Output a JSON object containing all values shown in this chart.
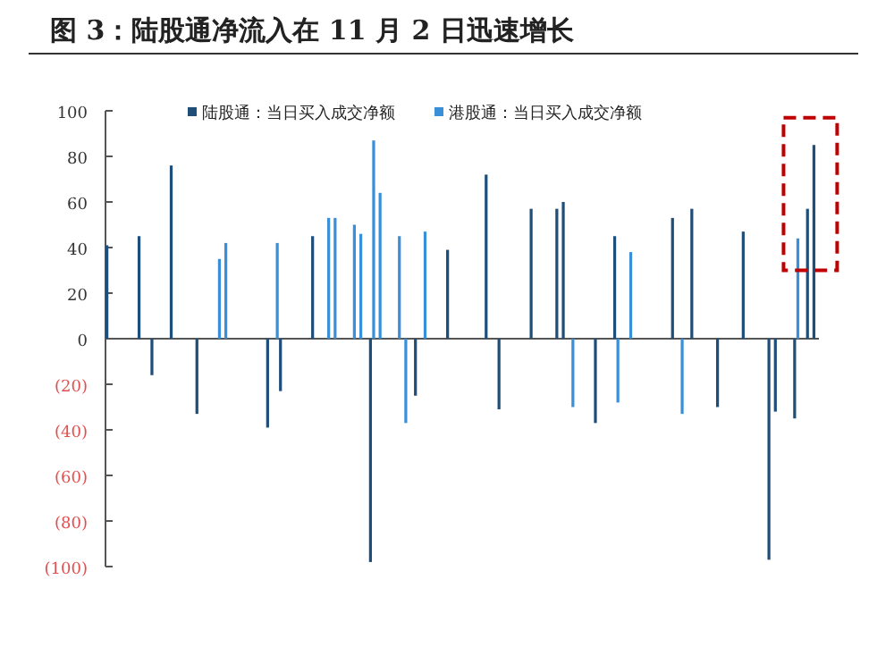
{
  "chart_data": {
    "type": "bar",
    "title": "图 3：陆股通净流入在 11 月 2 日迅速增长",
    "categories": [
      null,
      null,
      null,
      null,
      null,
      null,
      null,
      null,
      null,
      null,
      null,
      null,
      null,
      null,
      null,
      null,
      null,
      null,
      null,
      null,
      null,
      null,
      null,
      null,
      null,
      null,
      null,
      null,
      null,
      null,
      null,
      null,
      null,
      null,
      null,
      null,
      null,
      null,
      null,
      null,
      null,
      null,
      null,
      null,
      null,
      null,
      null,
      null,
      null,
      null,
      null,
      null,
      null,
      null,
      null,
      null,
      null,
      null,
      null,
      null,
      null,
      null,
      null,
      null,
      null,
      null,
      null,
      null,
      null,
      null,
      null,
      null,
      null,
      null,
      null,
      null,
      null,
      null,
      null,
      null,
      null,
      null,
      null,
      null,
      null,
      null,
      null,
      null,
      null,
      null,
      null,
      null,
      null,
      null,
      null,
      null,
      null,
      null,
      null,
      null,
      null,
      null,
      null,
      null,
      null,
      null,
      null,
      null,
      null,
      null,
      null
    ],
    "series": [
      {
        "name": "陆股通：当日买入成交净额",
        "color": "#1f4e79",
        "values": [
          41,
          null,
          null,
          null,
          null,
          45,
          null,
          -16,
          null,
          null,
          76,
          null,
          null,
          null,
          -33,
          null,
          null,
          null,
          null,
          null,
          null,
          null,
          null,
          null,
          null,
          -39,
          null,
          -23,
          null,
          null,
          null,
          null,
          45,
          null,
          null,
          null,
          null,
          null,
          null,
          null,
          null,
          -98,
          null,
          null,
          null,
          null,
          null,
          null,
          -25,
          null,
          null,
          null,
          null,
          39,
          null,
          null,
          null,
          null,
          null,
          72,
          null,
          -31,
          null,
          null,
          null,
          null,
          57,
          null,
          null,
          null,
          57,
          60,
          null,
          null,
          null,
          null,
          -37,
          null,
          null,
          45,
          null,
          null,
          null,
          null,
          null,
          null,
          null,
          null,
          53,
          null,
          null,
          57,
          null,
          null,
          null,
          -30,
          null,
          null,
          null,
          47,
          null,
          null,
          null,
          -97,
          -32,
          null,
          null,
          -35,
          null,
          57,
          85
        ]
      },
      {
        "name": "港股通：当日买入成交净额",
        "color": "#3a8fd9",
        "values": [
          null,
          null,
          null,
          null,
          null,
          null,
          null,
          null,
          null,
          null,
          null,
          null,
          null,
          null,
          null,
          null,
          null,
          35,
          42,
          null,
          null,
          null,
          null,
          null,
          null,
          null,
          42,
          null,
          null,
          null,
          null,
          null,
          null,
          null,
          53,
          53,
          null,
          null,
          50,
          46,
          null,
          87,
          64,
          null,
          null,
          45,
          -37,
          null,
          null,
          47,
          null,
          null,
          null,
          null,
          null,
          null,
          null,
          null,
          null,
          null,
          null,
          null,
          null,
          null,
          null,
          null,
          null,
          null,
          null,
          null,
          null,
          null,
          -30,
          null,
          null,
          null,
          null,
          null,
          null,
          -28,
          null,
          38,
          null,
          null,
          null,
          null,
          null,
          null,
          null,
          -33,
          null,
          null,
          null,
          null,
          null,
          null,
          null,
          null,
          null,
          null,
          null,
          null,
          null,
          null,
          null,
          null,
          null,
          44,
          null,
          null,
          null
        ]
      }
    ],
    "ylim": [
      -100,
      100
    ],
    "yticks": [
      {
        "value": -100,
        "label": "(100)"
      },
      {
        "value": -80,
        "label": "(80)"
      },
      {
        "value": -60,
        "label": "(60)"
      },
      {
        "value": -40,
        "label": "(40)"
      },
      {
        "value": -20,
        "label": "(20)"
      },
      0,
      20,
      40,
      60,
      80,
      100
    ],
    "legend": "top"
  }
}
